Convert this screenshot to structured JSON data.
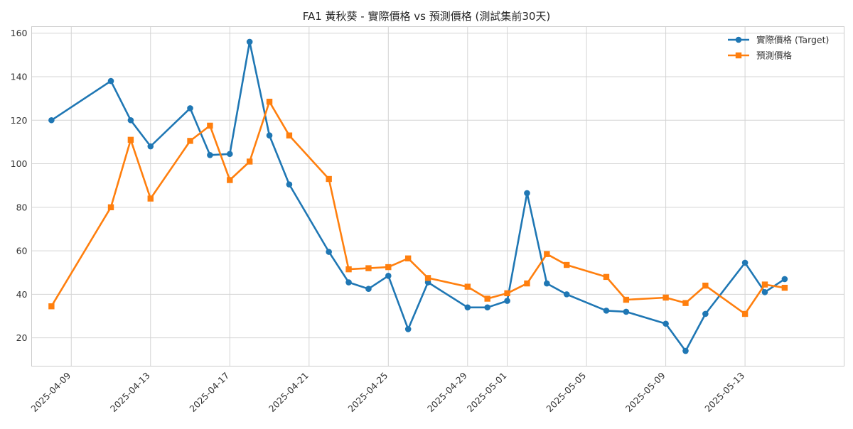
{
  "chart_data": {
    "type": "line",
    "title": "FA1 黃秋葵 - 實際價格 vs 預測價格 (測試集前30天)",
    "xlabel": "",
    "ylabel": "",
    "x_type": "date",
    "xlim": [
      "2025-04-07",
      "2025-05-18"
    ],
    "ylim": [
      7,
      163
    ],
    "x_ticks": [
      "2025-04-09",
      "2025-04-13",
      "2025-04-17",
      "2025-04-21",
      "2025-04-25",
      "2025-04-29",
      "2025-05-01",
      "2025-05-05",
      "2025-05-09",
      "2025-05-13"
    ],
    "y_ticks": [
      20,
      40,
      60,
      80,
      100,
      120,
      140,
      160
    ],
    "grid": true,
    "legend_position": "top-right",
    "series": [
      {
        "name": "實際價格 (Target)",
        "color": "#1f77b4",
        "marker": "circle",
        "x": [
          "2025-04-08",
          "2025-04-11",
          "2025-04-12",
          "2025-04-13",
          "2025-04-15",
          "2025-04-16",
          "2025-04-17",
          "2025-04-18",
          "2025-04-19",
          "2025-04-20",
          "2025-04-22",
          "2025-04-23",
          "2025-04-24",
          "2025-04-25",
          "2025-04-26",
          "2025-04-27",
          "2025-04-29",
          "2025-04-30",
          "2025-05-01",
          "2025-05-02",
          "2025-05-03",
          "2025-05-04",
          "2025-05-06",
          "2025-05-07",
          "2025-05-09",
          "2025-05-10",
          "2025-05-11",
          "2025-05-13",
          "2025-05-14",
          "2025-05-15"
        ],
        "values": [
          120,
          138,
          120,
          108,
          125.5,
          104,
          104.5,
          156,
          113,
          90.5,
          59.5,
          45.5,
          42.5,
          48.5,
          24,
          45.5,
          34,
          34,
          37,
          86.5,
          45,
          40,
          32.5,
          32,
          26.5,
          14,
          31,
          54.5,
          41,
          47
        ]
      },
      {
        "name": "預測價格",
        "color": "#ff7f0e",
        "marker": "square",
        "x": [
          "2025-04-08",
          "2025-04-11",
          "2025-04-12",
          "2025-04-13",
          "2025-04-15",
          "2025-04-16",
          "2025-04-17",
          "2025-04-18",
          "2025-04-19",
          "2025-04-20",
          "2025-04-22",
          "2025-04-23",
          "2025-04-24",
          "2025-04-25",
          "2025-04-26",
          "2025-04-27",
          "2025-04-29",
          "2025-04-30",
          "2025-05-01",
          "2025-05-02",
          "2025-05-03",
          "2025-05-04",
          "2025-05-06",
          "2025-05-07",
          "2025-05-09",
          "2025-05-10",
          "2025-05-11",
          "2025-05-13",
          "2025-05-14",
          "2025-05-15"
        ],
        "values": [
          34.5,
          80,
          111,
          84,
          110.5,
          117.5,
          92.5,
          101,
          128.5,
          113,
          93,
          51.5,
          52,
          52.5,
          56.5,
          47.5,
          43.5,
          38,
          40.5,
          45,
          58.5,
          53.5,
          48,
          37.5,
          38.5,
          36,
          44,
          31,
          44.5,
          43
        ]
      }
    ]
  }
}
